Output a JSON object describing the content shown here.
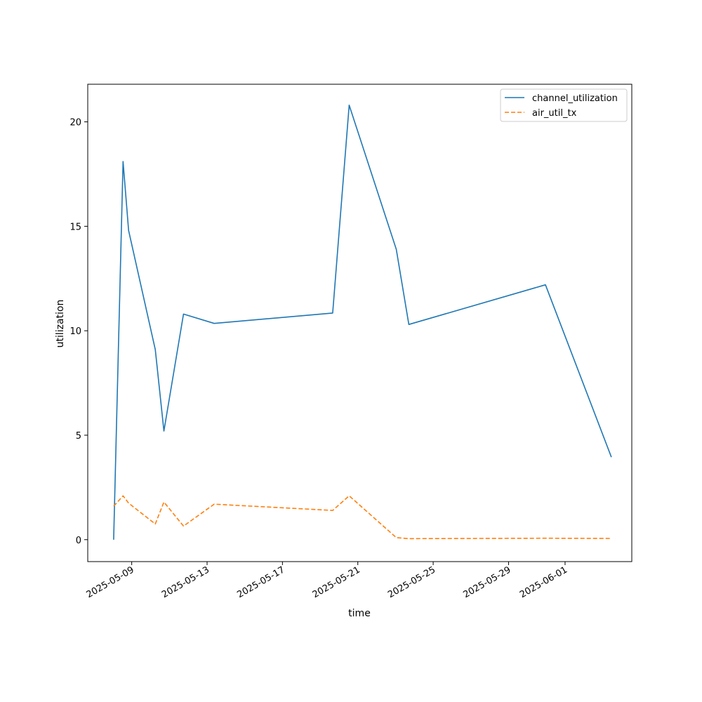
{
  "chart_data": {
    "type": "line",
    "xlabel": "time",
    "ylabel": "utilization",
    "x_ticks": [
      "2025-05-09",
      "2025-05-13",
      "2025-05-17",
      "2025-05-21",
      "2025-05-25",
      "2025-05-29",
      "2025-06-01"
    ],
    "y_ticks": [
      0,
      5,
      10,
      15,
      20
    ],
    "xlim": [
      "2025-05-06T16:00",
      "2025-06-04T13:00"
    ],
    "ylim": [
      -1.05,
      21.8
    ],
    "grid": false,
    "legend_position": "top-right",
    "series": [
      {
        "name": "channel_utilization",
        "color": "#1f77b4",
        "dash": "solid",
        "points": [
          {
            "x": "2025-05-08T01:00",
            "y": 0.0
          },
          {
            "x": "2025-05-08T13:00",
            "y": 18.1
          },
          {
            "x": "2025-05-08T20:00",
            "y": 14.8
          },
          {
            "x": "2025-05-10T06:00",
            "y": 9.1
          },
          {
            "x": "2025-05-10T17:00",
            "y": 5.2
          },
          {
            "x": "2025-05-11T18:00",
            "y": 10.8
          },
          {
            "x": "2025-05-13T09:00",
            "y": 10.35
          },
          {
            "x": "2025-05-19T16:00",
            "y": 10.85
          },
          {
            "x": "2025-05-20T13:00",
            "y": 20.8
          },
          {
            "x": "2025-05-23T01:00",
            "y": 13.9
          },
          {
            "x": "2025-05-23T17:00",
            "y": 10.3
          },
          {
            "x": "2025-05-30T23:00",
            "y": 12.2
          },
          {
            "x": "2025-06-03T11:00",
            "y": 3.95
          }
        ]
      },
      {
        "name": "air_util_tx",
        "color": "#ff7f0e",
        "dash": "dashed",
        "points": [
          {
            "x": "2025-05-08T01:00",
            "y": 1.6
          },
          {
            "x": "2025-05-08T13:00",
            "y": 2.1
          },
          {
            "x": "2025-05-08T20:00",
            "y": 1.75
          },
          {
            "x": "2025-05-10T06:00",
            "y": 0.75
          },
          {
            "x": "2025-05-10T17:00",
            "y": 1.8
          },
          {
            "x": "2025-05-11T18:00",
            "y": 0.65
          },
          {
            "x": "2025-05-13T09:00",
            "y": 1.7
          },
          {
            "x": "2025-05-19T16:00",
            "y": 1.4
          },
          {
            "x": "2025-05-20T13:00",
            "y": 2.1
          },
          {
            "x": "2025-05-23T01:00",
            "y": 0.1
          },
          {
            "x": "2025-05-23T17:00",
            "y": 0.05
          },
          {
            "x": "2025-05-30T23:00",
            "y": 0.07
          },
          {
            "x": "2025-06-03T11:00",
            "y": 0.06
          }
        ]
      }
    ]
  }
}
